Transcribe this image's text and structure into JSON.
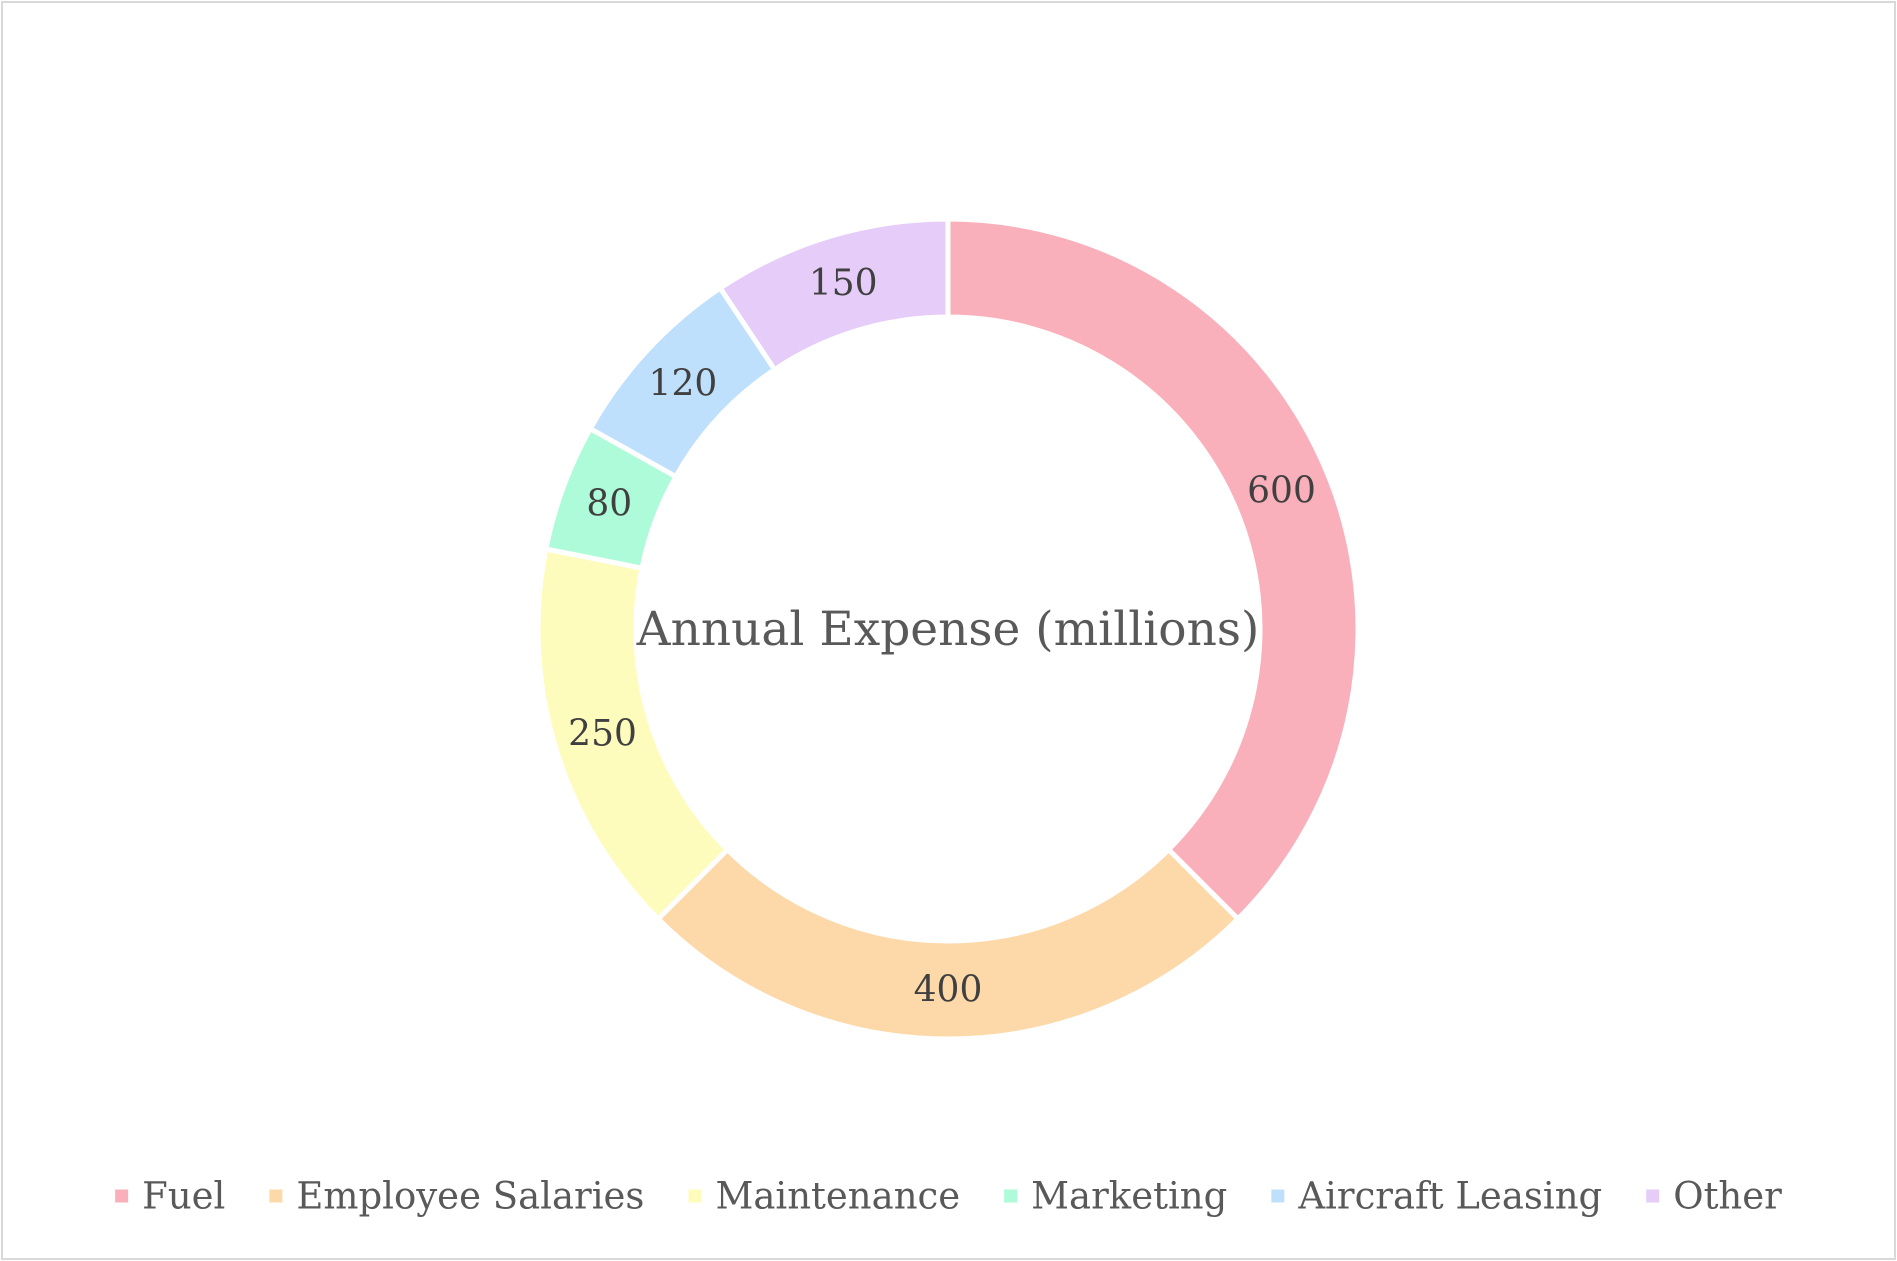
{
  "chart_data": {
    "type": "pie",
    "variant": "donut",
    "title": "",
    "center_label": "Annual Expense (millions)",
    "categories": [
      "Fuel",
      "Employee Salaries",
      "Maintenance",
      "Marketing",
      "Aircraft Leasing",
      "Other"
    ],
    "values": [
      600,
      400,
      250,
      80,
      120,
      150
    ],
    "colors": [
      "#fab0bb",
      "#fdd8a8",
      "#fefcbc",
      "#aefbd9",
      "#bfe0fd",
      "#e5ccf9"
    ],
    "data_labels": [
      "600",
      "400",
      "250",
      "80",
      "120",
      "150"
    ],
    "legend_position": "bottom"
  }
}
